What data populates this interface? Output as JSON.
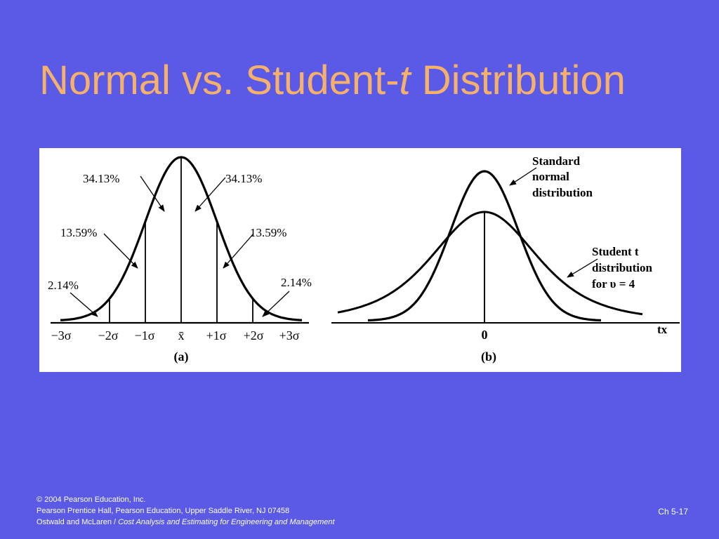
{
  "slide": {
    "title_prefix": "Normal vs. Student-",
    "title_italic": "t",
    "title_suffix": " Distribution",
    "page_number": "Ch 5-17"
  },
  "figure_a": {
    "labels": {
      "pct_center_left": "34.13%",
      "pct_center_right": "34.13%",
      "pct_mid_left": "13.59%",
      "pct_mid_right": "13.59%",
      "pct_tail_left": "2.14%",
      "pct_tail_right": "2.14%"
    },
    "axis_ticks": [
      "−3σ",
      "−2σ",
      "−1σ",
      "x̄",
      "+1σ",
      "+2σ",
      "+3σ"
    ],
    "caption": "(a)"
  },
  "figure_b": {
    "normal_label_lines": [
      "Standard",
      "normal",
      "distribution"
    ],
    "t_label_lines": [
      "Student t",
      "distribution",
      "for υ = 4"
    ],
    "zero_tick": "0",
    "axis_label": "tx",
    "caption": "(b)"
  },
  "footer": {
    "copyright_symbol": "©",
    "copyright": " 2004 Pearson Education, Inc.",
    "publisher": "Pearson Prentice Hall, Pearson Education, Upper Saddle River, NJ 07458",
    "authors": "Ostwald and McLaren / ",
    "book_title": "Cost Analysis and Estimating for Engineering and Management"
  },
  "colors": {
    "background": "#5a5ae6",
    "title": "#f5b06b",
    "panel": "#ffffff",
    "ink": "#000000"
  }
}
